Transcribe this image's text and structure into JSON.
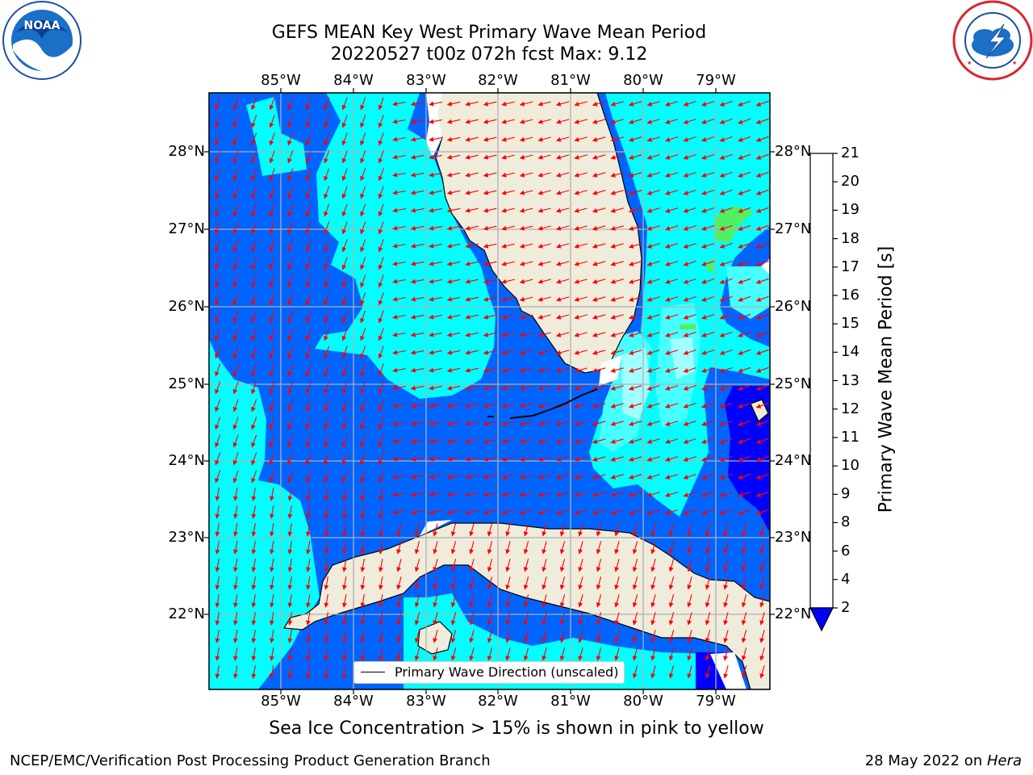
{
  "title": {
    "line1": "GEFS MEAN Key West Primary Wave Mean Period",
    "line2": "20220527 t00z 072h fcst   Max: 9.12"
  },
  "logos": {
    "left": "noaa-logo",
    "right": "nws-logo",
    "left_text": "NOAA",
    "left_ring_text": "NATIONAL OCEANIC AND ATMOSPHERIC ADMINISTRATION · U.S. DEPARTMENT OF COMMERCE",
    "right_ring_text": "NATIONAL WEATHER SERVICE"
  },
  "map": {
    "lon_labels": [
      "85°W",
      "84°W",
      "83°W",
      "82°W",
      "81°W",
      "80°W",
      "79°W"
    ],
    "lat_labels": [
      "28°N",
      "27°N",
      "26°N",
      "25°N",
      "24°N",
      "23°N",
      "22°N"
    ],
    "legend_label": "Primary Wave Direction (unscaled)",
    "colors": {
      "land": "#efecdc",
      "coast": "#000000",
      "grid": "#b0b0b0",
      "arrow": "#ff0000"
    }
  },
  "colorbar": {
    "title": "Primary Wave Mean Period [s]",
    "levels": [
      "2",
      "4",
      "6",
      "8",
      "9",
      "10",
      "11",
      "12",
      "13",
      "14",
      "15",
      "16",
      "17",
      "18",
      "19",
      "20",
      "21"
    ],
    "colors": [
      "#0064ff",
      "#00ffff",
      "#46ffff",
      "#a0ffff",
      "#50f064",
      "#00dc00",
      "#32c800",
      "#96d200",
      "#c8e100",
      "#e6f000",
      "#fafa00",
      "#ffdc00",
      "#ffb400",
      "#ff8c00",
      "#ff6400",
      "#ff3200",
      "#ff0000"
    ],
    "under_color": "#0000ff"
  },
  "footer": {
    "note": "Sea Ice Concentration > 15% is shown in pink to yellow",
    "credit": "NCEP/EMC/Verification Post Processing Product Generation Branch",
    "date": "28 May 2022 on ",
    "machine": "Hera"
  }
}
